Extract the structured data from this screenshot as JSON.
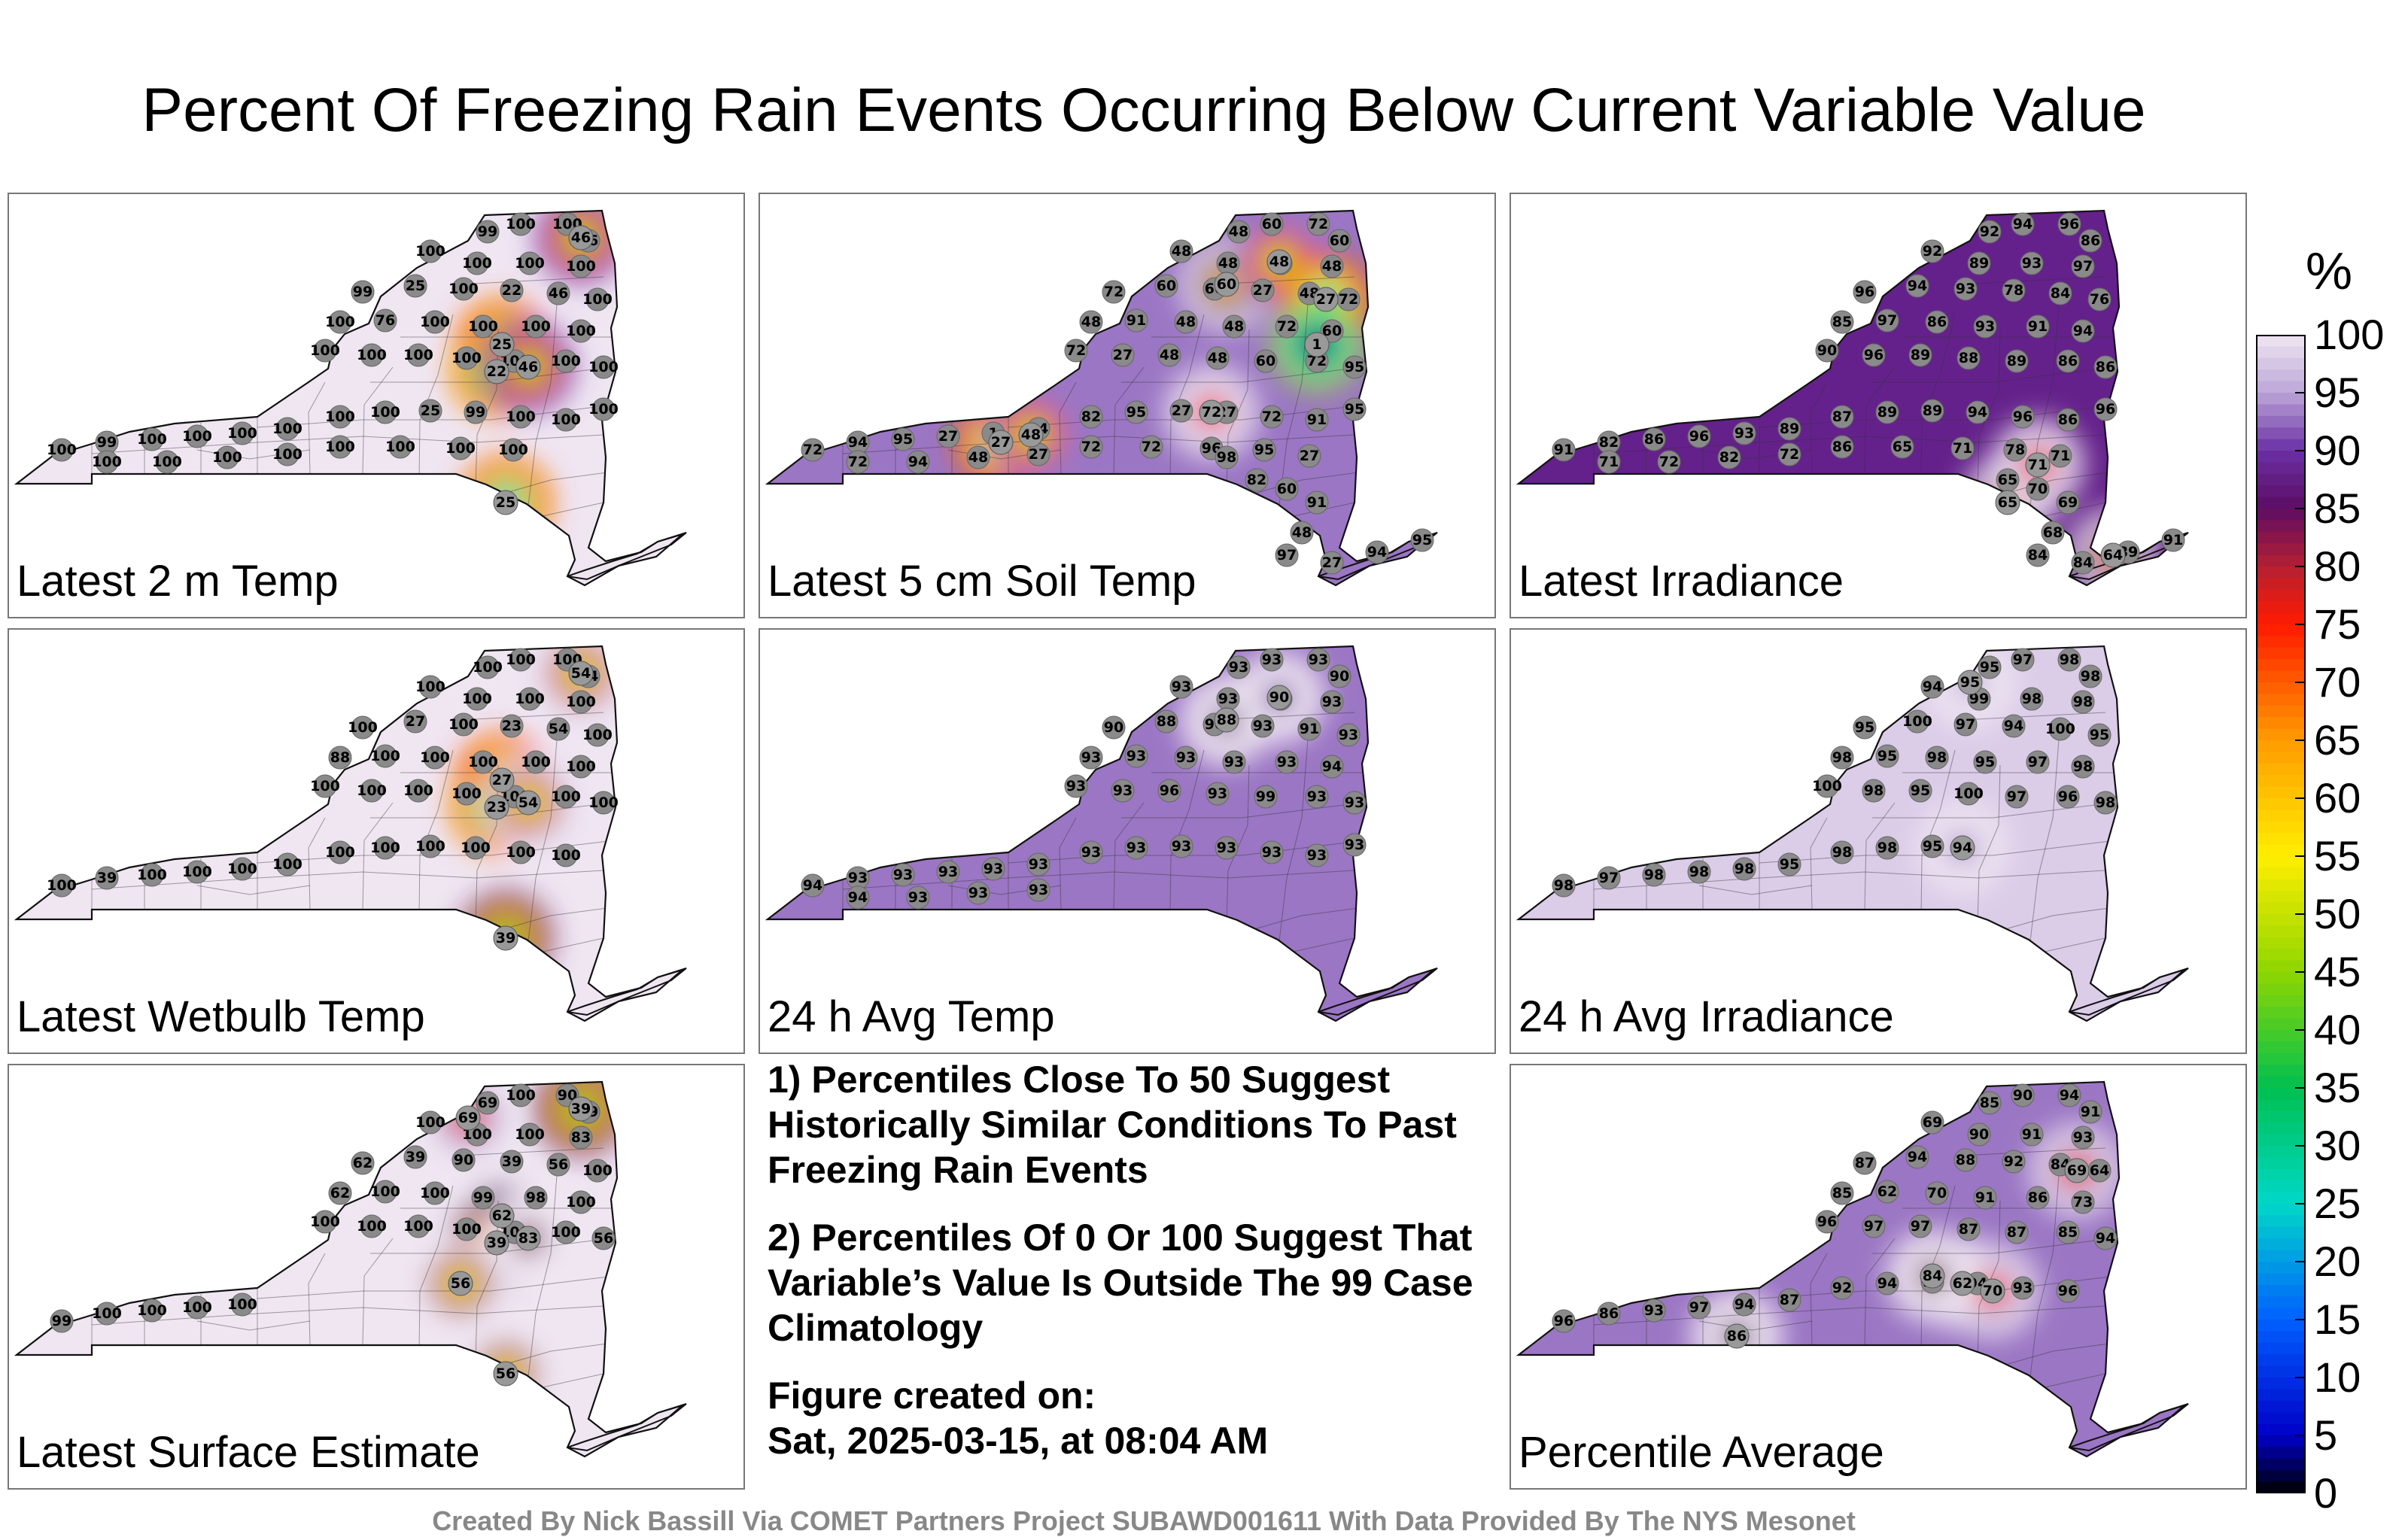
{
  "title": "Percent Of Freezing Rain Events Occurring Below Current Variable Value",
  "colorbar": {
    "unit": "%",
    "ticks": [
      "100",
      "95",
      "90",
      "85",
      "80",
      "75",
      "70",
      "65",
      "60",
      "55",
      "50",
      "45",
      "40",
      "35",
      "30",
      "25",
      "20",
      "15",
      "10",
      "5",
      "0"
    ],
    "stops": [
      {
        "value": 100,
        "color": "#efe6f2"
      },
      {
        "value": 95,
        "color": "#bca6d8"
      },
      {
        "value": 90,
        "color": "#6a2fa5"
      },
      {
        "value": 85,
        "color": "#5c0d63"
      },
      {
        "value": 80,
        "color": "#b51f32"
      },
      {
        "value": 75,
        "color": "#ff1a00"
      },
      {
        "value": 65,
        "color": "#ff9b00"
      },
      {
        "value": 55,
        "color": "#ffee00"
      },
      {
        "value": 45,
        "color": "#8ed600"
      },
      {
        "value": 35,
        "color": "#00c050"
      },
      {
        "value": 25,
        "color": "#00d8c8"
      },
      {
        "value": 15,
        "color": "#0060ff"
      },
      {
        "value": 5,
        "color": "#0000c8"
      },
      {
        "value": 0,
        "color": "#000000"
      }
    ]
  },
  "panels": [
    {
      "label": "Latest 2 m Temp",
      "base": 100,
      "hotspots": [
        {
          "value": 25,
          "at": "north-central"
        },
        {
          "value": 22,
          "at": "north-central"
        },
        {
          "value": 46,
          "at": "north-central"
        },
        {
          "value": 46,
          "at": "northeast corner"
        },
        {
          "value": 25,
          "at": "hudson valley"
        }
      ],
      "station_values": [
        "99",
        "100",
        "100",
        "46",
        "100",
        "100",
        "100",
        "100",
        "99",
        "25",
        "100",
        "22",
        "46",
        "100",
        "100",
        "76",
        "100",
        "100",
        "100",
        "100",
        "100",
        "100",
        "100",
        "100",
        "100",
        "100",
        "100",
        "100",
        "99",
        "100",
        "100",
        "100",
        "100",
        "100",
        "100",
        "25",
        "99",
        "100",
        "100",
        "100",
        "100",
        "100",
        "100",
        "100",
        "100",
        "100",
        "100",
        "100"
      ]
    },
    {
      "label": "Latest 5 cm Soil Temp",
      "base": 93,
      "hotspots": [
        {
          "value": 60,
          "at": "adirondacks"
        },
        {
          "value": 48,
          "at": "adirondacks"
        },
        {
          "value": 27,
          "at": "northeast"
        },
        {
          "value": 1,
          "at": "northeast"
        },
        {
          "value": 27,
          "at": "finger lakes"
        },
        {
          "value": 48,
          "at": "finger lakes"
        },
        {
          "value": 72,
          "at": "central"
        }
      ],
      "station_values": [
        "48",
        "60",
        "72",
        "60",
        "48",
        "48",
        "60",
        "48",
        "72",
        "60",
        "60",
        "27",
        "48",
        "72",
        "48",
        "91",
        "48",
        "48",
        "72",
        "60",
        "72",
        "27",
        "48",
        "48",
        "60",
        "72",
        "95",
        "72",
        "94",
        "95",
        "27",
        "1",
        "94",
        "82",
        "95",
        "27",
        "27",
        "72",
        "91",
        "95",
        "72",
        "94",
        "48",
        "27",
        "72",
        "72",
        "96",
        "95",
        "27",
        "82",
        "60",
        "91",
        "48",
        "97",
        "27",
        "94",
        "95",
        "98"
      ]
    },
    {
      "label": "Latest Irradiance",
      "base": 88,
      "hotspots": [
        {
          "value": 65,
          "at": "hudson valley"
        },
        {
          "value": 71,
          "at": "hudson valley"
        },
        {
          "value": 64,
          "at": "long island"
        }
      ],
      "station_values": [
        "92",
        "94",
        "96",
        "86",
        "92",
        "89",
        "93",
        "97",
        "96",
        "94",
        "93",
        "78",
        "84",
        "76",
        "85",
        "97",
        "86",
        "93",
        "91",
        "94",
        "90",
        "96",
        "89",
        "88",
        "89",
        "86",
        "86",
        "91",
        "82",
        "86",
        "96",
        "93",
        "89",
        "87",
        "89",
        "89",
        "94",
        "96",
        "86",
        "96",
        "71",
        "72",
        "82",
        "72",
        "86",
        "65",
        "71",
        "78",
        "71",
        "65",
        "70",
        "69",
        "68",
        "84",
        "84",
        "89",
        "91"
      ]
    },
    {
      "label": "Latest Wetbulb Temp",
      "base": 100,
      "hotspots": [
        {
          "value": 27,
          "at": "north-central"
        },
        {
          "value": 23,
          "at": "north-central"
        },
        {
          "value": 54,
          "at": "north-central"
        },
        {
          "value": 54,
          "at": "northeast corner"
        },
        {
          "value": 39,
          "at": "hudson valley"
        }
      ],
      "station_values": [
        "100",
        "100",
        "100",
        "54",
        "100",
        "100",
        "100",
        "100",
        "100",
        "27",
        "100",
        "23",
        "54",
        "100",
        "88",
        "100",
        "100",
        "100",
        "100",
        "100",
        "100",
        "100",
        "100",
        "100",
        "100",
        "100",
        "100",
        "100",
        "39",
        "100",
        "100",
        "100",
        "100",
        "100",
        "100",
        "100",
        "100",
        "100",
        "100"
      ]
    },
    {
      "label": "24 h Avg Temp",
      "base": 93,
      "hotspots": [
        {
          "value": 88,
          "at": "adirondacks"
        },
        {
          "value": 90,
          "at": "adirondacks"
        }
      ],
      "station_values": [
        "93",
        "93",
        "93",
        "90",
        "93",
        "93",
        "93",
        "93",
        "90",
        "88",
        "90",
        "93",
        "91",
        "93",
        "93",
        "93",
        "93",
        "93",
        "93",
        "94",
        "93",
        "93",
        "96",
        "93",
        "99",
        "93",
        "93",
        "94",
        "93",
        "93",
        "93",
        "93",
        "93",
        "93",
        "93",
        "93",
        "93",
        "93",
        "93",
        "93",
        "94",
        "93",
        "93",
        "93"
      ]
    },
    {
      "label": "24 h Avg Irradiance",
      "base": 98,
      "hotspots": [
        {
          "value": 94,
          "at": "central"
        },
        {
          "value": 95,
          "at": "north"
        }
      ],
      "station_values": [
        "95",
        "97",
        "98",
        "98",
        "94",
        "99",
        "98",
        "98",
        "95",
        "100",
        "97",
        "94",
        "100",
        "95",
        "98",
        "95",
        "98",
        "95",
        "97",
        "98",
        "100",
        "98",
        "95",
        "100",
        "97",
        "96",
        "98",
        "98",
        "97",
        "98",
        "98",
        "98",
        "95",
        "98",
        "98",
        "95"
      ]
    },
    {
      "label": "Latest Surface Estimate",
      "base": 100,
      "hotspots": [
        {
          "value": 62,
          "at": "north-central"
        },
        {
          "value": 39,
          "at": "north-central"
        },
        {
          "value": 83,
          "at": "north-central"
        },
        {
          "value": 56,
          "at": "central"
        },
        {
          "value": 39,
          "at": "northeast corner"
        },
        {
          "value": 69,
          "at": "north"
        },
        {
          "value": 56,
          "at": "hudson valley"
        }
      ],
      "station_values": [
        "69",
        "100",
        "90",
        "39",
        "100",
        "100",
        "100",
        "83",
        "62",
        "39",
        "90",
        "39",
        "56",
        "100",
        "62",
        "100",
        "100",
        "99",
        "98",
        "100",
        "100",
        "100",
        "100",
        "100",
        "100",
        "100",
        "56",
        "99",
        "100",
        "100",
        "100",
        "100"
      ]
    },
    {
      "label": "Percentile Average",
      "base": 93,
      "hotspots": [
        {
          "value": 62,
          "at": "central"
        },
        {
          "value": 70,
          "at": "central"
        },
        {
          "value": 69,
          "at": "northeast"
        },
        {
          "value": 84,
          "at": "central"
        },
        {
          "value": 86,
          "at": "southwest"
        }
      ],
      "station_values": [
        "85",
        "90",
        "94",
        "91",
        "69",
        "90",
        "91",
        "93",
        "87",
        "94",
        "88",
        "92",
        "84",
        "64",
        "85",
        "62",
        "70",
        "91",
        "86",
        "73",
        "96",
        "97",
        "97",
        "87",
        "87",
        "85",
        "94",
        "96",
        "86",
        "93",
        "97",
        "94",
        "87",
        "92",
        "94",
        "95",
        "94",
        "93",
        "96"
      ]
    }
  ],
  "notes": [
    "1) Percentiles Close To 50 Suggest Historically Similar Conditions To Past Freezing Rain Events",
    "2) Percentiles Of 0 Or 100 Suggest That Variable’s Value Is Outside The 99 Case Climatology",
    "Figure created on:",
    "Sat, 2025-03-15, at 08:04 AM"
  ],
  "credit": "Created By Nick Bassill Via COMET Partners Project SUBAWD001611 With Data Provided By The NYS Mesonet"
}
